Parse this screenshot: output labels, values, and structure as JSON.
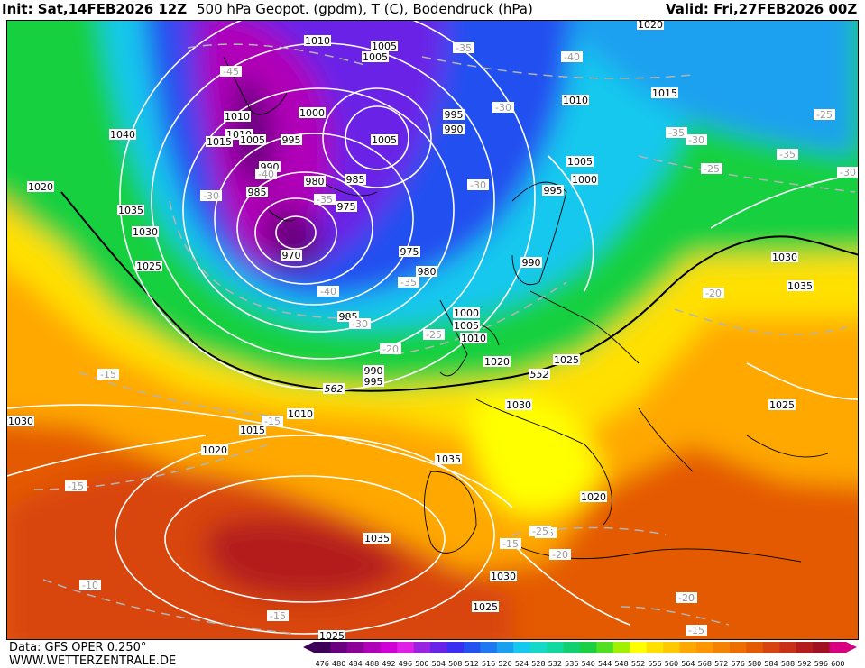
{
  "header": {
    "init": "Init: Sat,14FEB2026 12Z",
    "title": "500 hPa Geopot. (gpdm), T (C), Bodendruck (hPa)",
    "valid": "Valid: Fri,27FEB2026 00Z"
  },
  "footer": {
    "data_source": "Data: GFS OPER 0.250°",
    "website": "WWW.WETTERZENTRALE.DE"
  },
  "legend": {
    "values": [
      "476",
      "480",
      "484",
      "488",
      "492",
      "496",
      "500",
      "504",
      "508",
      "512",
      "516",
      "520",
      "524",
      "528",
      "532",
      "536",
      "540",
      "544",
      "548",
      "552",
      "556",
      "560",
      "564",
      "568",
      "572",
      "576",
      "580",
      "584",
      "588",
      "592",
      "596",
      "600"
    ],
    "colors": [
      "#3c0058",
      "#6a0080",
      "#8c0099",
      "#b000b8",
      "#d100d6",
      "#e01ee8",
      "#9a22e0",
      "#6a22e6",
      "#3a2ef0",
      "#2450f0",
      "#1e78f2",
      "#1aa0f0",
      "#16c8ee",
      "#14d8c8",
      "#12d8a0",
      "#10d070",
      "#18d040",
      "#50e020",
      "#a0f000",
      "#ffff00",
      "#ffe000",
      "#ffc800",
      "#ffa800",
      "#ff9600",
      "#f58200",
      "#ef6e00",
      "#e45a00",
      "#d84410",
      "#c83018",
      "#b41c1c",
      "#a01020",
      "#d80080"
    ]
  },
  "colors": {
    "background": "#ffffff",
    "contour": "#ffffff",
    "temp_isotherm": "#b4b4b4",
    "line_552": "#000000"
  },
  "pressure_labels": [
    "1010",
    "1005",
    "1005",
    "1000",
    "1010",
    "1010",
    "1015",
    "1005",
    "995",
    "1005",
    "995",
    "990",
    "1040",
    "1010",
    "1015",
    "1020",
    "990",
    "985",
    "980",
    "985",
    "975",
    "1005",
    "995",
    "1000",
    "1020",
    "1035",
    "1030",
    "970",
    "975",
    "980",
    "1025",
    "990",
    "1030",
    "985",
    "1000",
    "1005",
    "1010",
    "1035",
    "1020",
    "990",
    "995",
    "1025",
    "1030",
    "1030",
    "1010",
    "1015",
    "1025",
    "1020",
    "1035",
    "1020",
    "1035",
    "1030",
    "1025",
    "1025"
  ],
  "temp_labels": [
    "-35",
    "-40",
    "-45",
    "-30",
    "-35",
    "-30",
    "-25",
    "-35",
    "-30",
    "-30",
    "-25",
    "-40",
    "-35",
    "-40",
    "-30",
    "-35",
    "-30",
    "-25",
    "-20",
    "-20",
    "-25",
    "-15",
    "-20",
    "-15",
    "-15",
    "-15",
    "-10",
    "-15",
    "-20",
    "-25",
    "-20",
    "-15"
  ],
  "geopot_labels": [
    "562",
    "552"
  ]
}
